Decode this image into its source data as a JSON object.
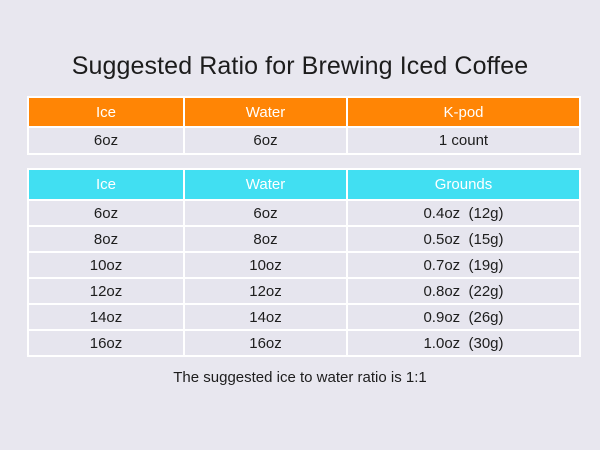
{
  "title": "Suggested Ratio for Brewing Iced Coffee",
  "colors": {
    "kpod_header": "#ff8505",
    "grounds_header": "#41dff2",
    "cell_bg": "#e6e5ee",
    "page_bg": "#e8e7ef"
  },
  "kpod_table": {
    "headers": [
      "Ice",
      "Water",
      "K-pod"
    ],
    "rows": [
      [
        "6oz",
        "6oz",
        "1 count"
      ]
    ]
  },
  "grounds_table": {
    "headers": [
      "Ice",
      "Water",
      "Grounds"
    ],
    "rows": [
      [
        "6oz",
        "6oz",
        "0.4oz  (12g)"
      ],
      [
        "8oz",
        "8oz",
        "0.5oz  (15g)"
      ],
      [
        "10oz",
        "10oz",
        "0.7oz  (19g)"
      ],
      [
        "12oz",
        "12oz",
        "0.8oz  (22g)"
      ],
      [
        "14oz",
        "14oz",
        "0.9oz  (26g)"
      ],
      [
        "16oz",
        "16oz",
        "1.0oz  (30g)"
      ]
    ]
  },
  "footer": "The suggested ice to water ratio is 1:1"
}
